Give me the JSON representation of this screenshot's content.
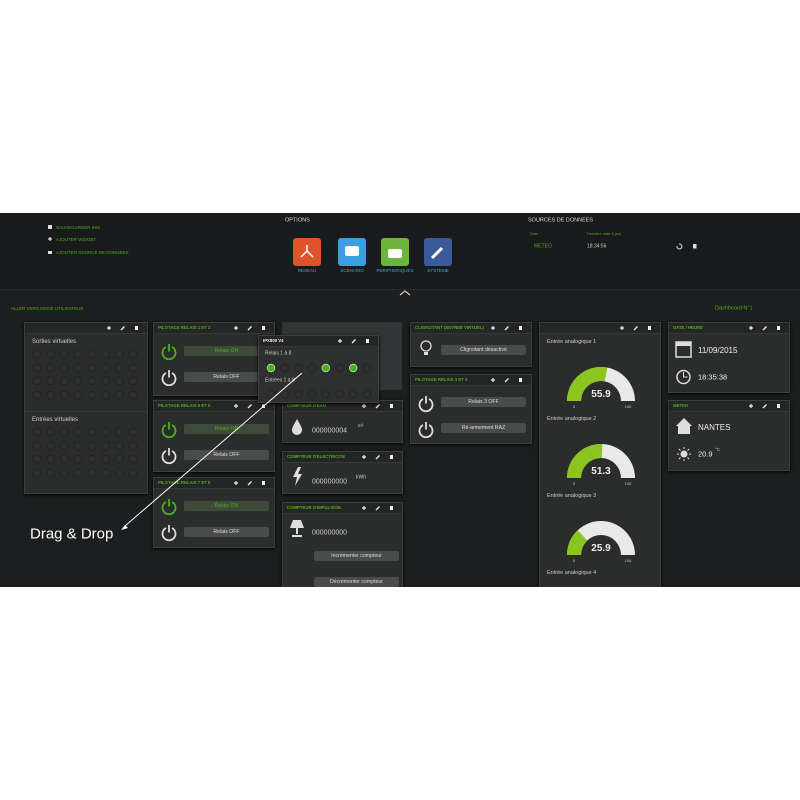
{
  "menu": {
    "items": [
      "SAUVEGARDER IHM",
      "AJOUTER WIDGET",
      "AJOUTER SOURCE DE DONNEES"
    ]
  },
  "options": {
    "title": "OPTIONS",
    "buttons": [
      "RESEAU",
      "SCENARIO",
      "PERIPHERIQUES",
      "SYSTEME"
    ]
  },
  "sources": {
    "title": "SOURCES DE DONNEES",
    "headers": [
      "Nom",
      "Dernière mise à jour"
    ],
    "rows": [
      [
        "METEO",
        "18:34:56"
      ]
    ]
  },
  "mode_link": "ALLER VERS MODE UTILISATEUR",
  "dashboard": "Dashboard N°1",
  "widgets": {
    "virtual": {
      "outputs": "Sorties virtuelles",
      "inputs": "Entrées virtuelles"
    },
    "relays12": {
      "title": "PILOTAGE RELAIS 1 ET 2",
      "on": "Relais ON",
      "off": "Relais OFF"
    },
    "relays56": {
      "title": "PILOTAGE RELAIS 5 ET 6",
      "on": "Relais ON",
      "off": "Relais OFF"
    },
    "relays78": {
      "title": "PILOTAGE RELAIS 7 ET 8",
      "on": "Relais ON",
      "off": "Relais OFF"
    },
    "ipx": {
      "title": "IPX800 V4",
      "relays": "Relais 1 à 8",
      "inputs": "Entrées 1 à 8"
    },
    "water": {
      "title": "COMPTEUR D'EAU",
      "value": "000000004",
      "unit": "m³"
    },
    "electricity": {
      "title": "COMPTEUR D'ELECTRICITE",
      "value": "000000000",
      "unit": "kWh"
    },
    "impulse": {
      "title": "COMPTEUR D'IMPULSION",
      "value": "000000000",
      "inc": "Incrémenter compteur",
      "dec": "Décrémenter compteur"
    },
    "blink": {
      "title": "CLIGNOTANT (ENTREE VIRTUEL)",
      "button": "Clignotant désactivé"
    },
    "relays34": {
      "title": "PILOTAGE RELAIS 3 ET 4",
      "b1": "Relais 3 OFF",
      "b2": "Ré-armement RAZ"
    },
    "gauges": [
      {
        "label": "Entrée analogique 1",
        "value": 55.9,
        "min": 0,
        "max": 100
      },
      {
        "label": "Entrée analogique 2",
        "value": 51.3,
        "min": 0,
        "max": 100
      },
      {
        "label": "Entrée analogique 3",
        "value": 25.9,
        "min": 0,
        "max": 100
      },
      {
        "label": "Entrée analogique 4"
      }
    ],
    "datetime": {
      "title": "DATE / HEURE",
      "date": "11/09/2015",
      "time": "18:35:38"
    },
    "meteo": {
      "title": "METEO",
      "city": "NANTES",
      "temp": 20.9,
      "unit": "°C"
    }
  },
  "annotation": "Drag & Drop"
}
